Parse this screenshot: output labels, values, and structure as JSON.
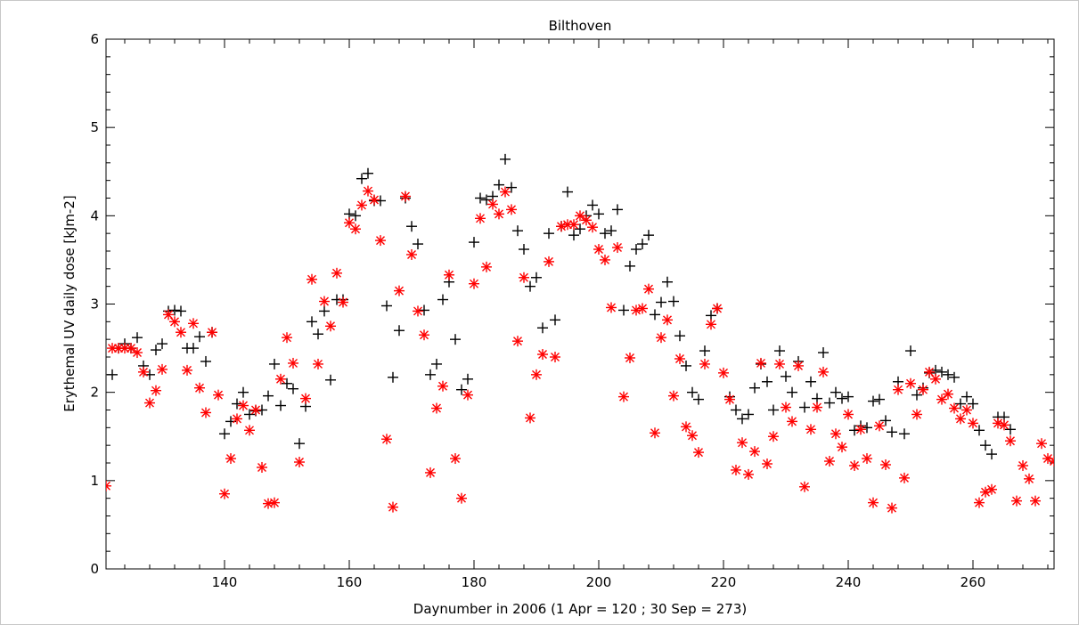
{
  "chart_data": {
    "type": "scatter",
    "title": "Bilthoven",
    "xlabel": "Daynumber in 2006 (1 Apr = 120 ; 30 Sep = 273)",
    "ylabel": "Erythemal UV daily dose [kJm-2]",
    "xlim": [
      121,
      273
    ],
    "ylim": [
      0,
      6
    ],
    "xticks": [
      140,
      160,
      180,
      200,
      220,
      240,
      260
    ],
    "yticks": [
      0,
      1,
      2,
      3,
      4,
      5,
      6
    ],
    "grid": false,
    "series": [
      {
        "marker": "plus",
        "color": "#000000",
        "points": [
          [
            122,
            2.2
          ],
          [
            123,
            2.5
          ],
          [
            124,
            2.55
          ],
          [
            125,
            2.5
          ],
          [
            126,
            2.62
          ],
          [
            127,
            2.3
          ],
          [
            128,
            2.2
          ],
          [
            129,
            2.48
          ],
          [
            130,
            2.55
          ],
          [
            131,
            2.92
          ],
          [
            132,
            2.93
          ],
          [
            133,
            2.92
          ],
          [
            134,
            2.5
          ],
          [
            135,
            2.5
          ],
          [
            136,
            2.63
          ],
          [
            137,
            2.35
          ],
          [
            138,
            2.68
          ],
          [
            140,
            1.53
          ],
          [
            141,
            1.67
          ],
          [
            142,
            1.87
          ],
          [
            143,
            2.0
          ],
          [
            144,
            1.75
          ],
          [
            145,
            1.79
          ],
          [
            146,
            1.8
          ],
          [
            147,
            1.96
          ],
          [
            148,
            2.32
          ],
          [
            149,
            1.85
          ],
          [
            150,
            2.1
          ],
          [
            151,
            2.04
          ],
          [
            152,
            1.42
          ],
          [
            153,
            1.84
          ],
          [
            154,
            2.8
          ],
          [
            155,
            2.66
          ],
          [
            156,
            2.92
          ],
          [
            157,
            2.14
          ],
          [
            158,
            3.05
          ],
          [
            159,
            3.05
          ],
          [
            160,
            4.02
          ],
          [
            161,
            4.0
          ],
          [
            162,
            4.42
          ],
          [
            163,
            4.48
          ],
          [
            164,
            4.17
          ],
          [
            165,
            4.17
          ],
          [
            166,
            2.98
          ],
          [
            167,
            2.17
          ],
          [
            168,
            2.7
          ],
          [
            169,
            4.2
          ],
          [
            170,
            3.88
          ],
          [
            171,
            3.68
          ],
          [
            172,
            2.93
          ],
          [
            173,
            2.2
          ],
          [
            174,
            2.32
          ],
          [
            175,
            3.05
          ],
          [
            176,
            3.25
          ],
          [
            177,
            2.6
          ],
          [
            178,
            2.03
          ],
          [
            179,
            2.15
          ],
          [
            180,
            3.7
          ],
          [
            181,
            4.2
          ],
          [
            182,
            4.18
          ],
          [
            183,
            4.22
          ],
          [
            184,
            4.35
          ],
          [
            185,
            4.64
          ],
          [
            186,
            4.32
          ],
          [
            187,
            3.83
          ],
          [
            188,
            3.62
          ],
          [
            189,
            3.2
          ],
          [
            190,
            3.3
          ],
          [
            191,
            2.73
          ],
          [
            192,
            3.8
          ],
          [
            193,
            2.82
          ],
          [
            194,
            3.88
          ],
          [
            195,
            4.27
          ],
          [
            196,
            3.78
          ],
          [
            197,
            3.85
          ],
          [
            198,
            4.0
          ],
          [
            199,
            4.12
          ],
          [
            200,
            4.02
          ],
          [
            201,
            3.8
          ],
          [
            202,
            3.83
          ],
          [
            203,
            4.07
          ],
          [
            204,
            2.93
          ],
          [
            205,
            3.43
          ],
          [
            206,
            3.62
          ],
          [
            207,
            3.68
          ],
          [
            208,
            3.78
          ],
          [
            209,
            2.88
          ],
          [
            210,
            3.02
          ],
          [
            211,
            3.25
          ],
          [
            212,
            3.03
          ],
          [
            213,
            2.64
          ],
          [
            214,
            2.3
          ],
          [
            215,
            2.0
          ],
          [
            216,
            1.92
          ],
          [
            217,
            2.47
          ],
          [
            218,
            2.87
          ],
          [
            219,
            2.95
          ],
          [
            221,
            1.95
          ],
          [
            222,
            1.8
          ],
          [
            223,
            1.7
          ],
          [
            224,
            1.75
          ],
          [
            225,
            2.05
          ],
          [
            226,
            2.32
          ],
          [
            227,
            2.12
          ],
          [
            228,
            1.8
          ],
          [
            229,
            2.47
          ],
          [
            230,
            2.18
          ],
          [
            231,
            2.0
          ],
          [
            232,
            2.35
          ],
          [
            233,
            1.83
          ],
          [
            234,
            2.12
          ],
          [
            235,
            1.93
          ],
          [
            236,
            2.45
          ],
          [
            237,
            1.88
          ],
          [
            238,
            2.0
          ],
          [
            239,
            1.93
          ],
          [
            240,
            1.95
          ],
          [
            241,
            1.57
          ],
          [
            242,
            1.62
          ],
          [
            243,
            1.6
          ],
          [
            244,
            1.9
          ],
          [
            245,
            1.92
          ],
          [
            246,
            1.68
          ],
          [
            247,
            1.55
          ],
          [
            248,
            2.12
          ],
          [
            249,
            1.53
          ],
          [
            250,
            2.47
          ],
          [
            251,
            1.97
          ],
          [
            252,
            2.05
          ],
          [
            253,
            2.22
          ],
          [
            254,
            2.25
          ],
          [
            255,
            2.23
          ],
          [
            256,
            2.2
          ],
          [
            257,
            2.17
          ],
          [
            258,
            1.87
          ],
          [
            259,
            1.95
          ],
          [
            260,
            1.87
          ],
          [
            261,
            1.57
          ],
          [
            262,
            1.4
          ],
          [
            263,
            1.3
          ],
          [
            264,
            1.72
          ],
          [
            265,
            1.72
          ],
          [
            266,
            1.58
          ]
        ]
      },
      {
        "marker": "asterisk",
        "color": "#ff0000",
        "points": [
          [
            121,
            0.94
          ],
          [
            122,
            2.5
          ],
          [
            123,
            2.5
          ],
          [
            124,
            2.5
          ],
          [
            125,
            2.5
          ],
          [
            126,
            2.45
          ],
          [
            127,
            2.23
          ],
          [
            128,
            1.88
          ],
          [
            129,
            2.02
          ],
          [
            130,
            2.26
          ],
          [
            131,
            2.88
          ],
          [
            132,
            2.8
          ],
          [
            133,
            2.68
          ],
          [
            134,
            2.25
          ],
          [
            135,
            2.78
          ],
          [
            136,
            2.05
          ],
          [
            137,
            1.77
          ],
          [
            138,
            2.68
          ],
          [
            139,
            1.97
          ],
          [
            140,
            0.85
          ],
          [
            141,
            1.25
          ],
          [
            142,
            1.7
          ],
          [
            143,
            1.85
          ],
          [
            144,
            1.57
          ],
          [
            145,
            1.8
          ],
          [
            146,
            1.15
          ],
          [
            147,
            0.74
          ],
          [
            148,
            0.75
          ],
          [
            149,
            2.15
          ],
          [
            150,
            2.62
          ],
          [
            151,
            2.33
          ],
          [
            152,
            1.21
          ],
          [
            153,
            1.93
          ],
          [
            154,
            3.28
          ],
          [
            155,
            2.32
          ],
          [
            156,
            3.03
          ],
          [
            157,
            2.75
          ],
          [
            158,
            3.35
          ],
          [
            159,
            3.02
          ],
          [
            160,
            3.92
          ],
          [
            161,
            3.85
          ],
          [
            162,
            4.12
          ],
          [
            163,
            4.28
          ],
          [
            164,
            4.18
          ],
          [
            165,
            3.72
          ],
          [
            166,
            1.47
          ],
          [
            167,
            0.7
          ],
          [
            168,
            3.15
          ],
          [
            169,
            4.22
          ],
          [
            170,
            3.56
          ],
          [
            171,
            2.92
          ],
          [
            172,
            2.65
          ],
          [
            173,
            1.09
          ],
          [
            174,
            1.82
          ],
          [
            175,
            2.07
          ],
          [
            176,
            3.33
          ],
          [
            177,
            1.25
          ],
          [
            178,
            0.8
          ],
          [
            179,
            1.97
          ],
          [
            180,
            3.23
          ],
          [
            181,
            3.97
          ],
          [
            182,
            3.42
          ],
          [
            183,
            4.13
          ],
          [
            184,
            4.02
          ],
          [
            185,
            4.27
          ],
          [
            186,
            4.07
          ],
          [
            187,
            2.58
          ],
          [
            188,
            3.3
          ],
          [
            189,
            1.71
          ],
          [
            190,
            2.2
          ],
          [
            191,
            2.43
          ],
          [
            192,
            3.48
          ],
          [
            193,
            2.4
          ],
          [
            194,
            3.88
          ],
          [
            195,
            3.9
          ],
          [
            196,
            3.9
          ],
          [
            197,
            4.0
          ],
          [
            198,
            3.95
          ],
          [
            199,
            3.87
          ],
          [
            200,
            3.62
          ],
          [
            201,
            3.5
          ],
          [
            202,
            2.96
          ],
          [
            203,
            3.64
          ],
          [
            204,
            1.95
          ],
          [
            205,
            2.39
          ],
          [
            206,
            2.93
          ],
          [
            207,
            2.95
          ],
          [
            208,
            3.17
          ],
          [
            209,
            1.54
          ],
          [
            210,
            2.62
          ],
          [
            211,
            2.82
          ],
          [
            212,
            1.96
          ],
          [
            213,
            2.38
          ],
          [
            214,
            1.61
          ],
          [
            215,
            1.51
          ],
          [
            216,
            1.32
          ],
          [
            217,
            2.32
          ],
          [
            218,
            2.77
          ],
          [
            219,
            2.95
          ],
          [
            220,
            2.22
          ],
          [
            221,
            1.92
          ],
          [
            222,
            1.12
          ],
          [
            223,
            1.43
          ],
          [
            224,
            1.07
          ],
          [
            225,
            1.33
          ],
          [
            226,
            2.33
          ],
          [
            227,
            1.19
          ],
          [
            228,
            1.5
          ],
          [
            229,
            2.32
          ],
          [
            230,
            1.83
          ],
          [
            231,
            1.67
          ],
          [
            232,
            2.3
          ],
          [
            233,
            0.93
          ],
          [
            234,
            1.58
          ],
          [
            235,
            1.83
          ],
          [
            236,
            2.23
          ],
          [
            237,
            1.22
          ],
          [
            238,
            1.53
          ],
          [
            239,
            1.38
          ],
          [
            240,
            1.75
          ],
          [
            241,
            1.17
          ],
          [
            242,
            1.58
          ],
          [
            243,
            1.25
          ],
          [
            244,
            0.75
          ],
          [
            245,
            1.62
          ],
          [
            246,
            1.18
          ],
          [
            247,
            0.69
          ],
          [
            248,
            2.03
          ],
          [
            249,
            1.03
          ],
          [
            250,
            2.1
          ],
          [
            251,
            1.75
          ],
          [
            252,
            2.03
          ],
          [
            253,
            2.23
          ],
          [
            254,
            2.15
          ],
          [
            255,
            1.92
          ],
          [
            256,
            1.98
          ],
          [
            257,
            1.82
          ],
          [
            258,
            1.7
          ],
          [
            259,
            1.8
          ],
          [
            260,
            1.65
          ],
          [
            261,
            0.75
          ],
          [
            262,
            0.87
          ],
          [
            263,
            0.9
          ],
          [
            264,
            1.65
          ],
          [
            265,
            1.63
          ],
          [
            266,
            1.45
          ],
          [
            267,
            0.77
          ],
          [
            268,
            1.17
          ],
          [
            269,
            1.02
          ],
          [
            270,
            0.77
          ],
          [
            271,
            1.42
          ],
          [
            272,
            1.25
          ],
          [
            273,
            1.22
          ],
          [
            274,
            1.27
          ]
        ]
      }
    ]
  }
}
